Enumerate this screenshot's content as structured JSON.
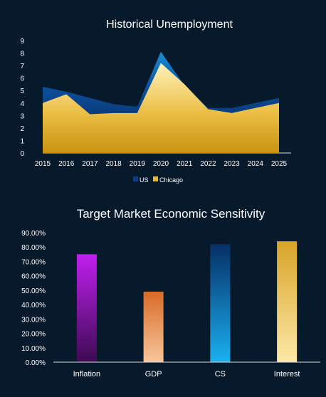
{
  "chart_data": [
    {
      "type": "area",
      "title": "Historical Unemployment",
      "x": [
        "2015",
        "2016",
        "2017",
        "2018",
        "2019",
        "2020",
        "2021",
        "2022",
        "2023",
        "2024",
        "2025"
      ],
      "ylim": [
        0,
        9
      ],
      "yticks": [
        "0",
        "1",
        "2",
        "3",
        "4",
        "5",
        "6",
        "7",
        "8",
        "9"
      ],
      "series": [
        {
          "name": "US",
          "values": [
            5.3,
            4.9,
            4.4,
            3.9,
            3.7,
            8.1,
            5.4,
            3.6,
            3.6,
            4.0,
            4.4
          ],
          "color": "#0b3f8c"
        },
        {
          "name": "Chicago",
          "values": [
            4.0,
            4.7,
            3.1,
            3.2,
            3.2,
            7.2,
            5.5,
            3.5,
            3.2,
            3.6,
            4.0
          ],
          "color": "#e8b838"
        }
      ],
      "legend_position": "bottom",
      "grid": false
    },
    {
      "type": "bar",
      "title": "Target Market Economic Sensitivity",
      "categories": [
        "Inflation",
        "GDP",
        "CS",
        "Interest"
      ],
      "values": [
        0.75,
        0.49,
        0.82,
        0.84
      ],
      "ylim": [
        0,
        0.9
      ],
      "yticks": [
        "0.00%",
        "10.00%",
        "20.00%",
        "30.00%",
        "40.00%",
        "50.00%",
        "60.00%",
        "70.00%",
        "80.00%",
        "90.00%"
      ],
      "colors": [
        [
          "#c020f0",
          "#3d0a52"
        ],
        [
          "#d86a28",
          "#f7c69a"
        ],
        [
          "#062f66",
          "#1ab0f0"
        ],
        [
          "#d8a428",
          "#fde8a8"
        ]
      ],
      "grid": false
    }
  ]
}
